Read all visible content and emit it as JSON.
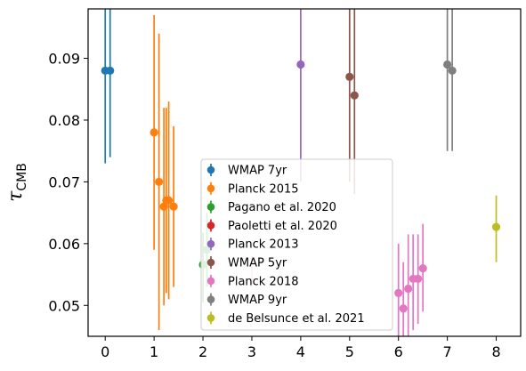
{
  "chart_data": {
    "type": "scatter",
    "title": "",
    "xlabel": "",
    "ylabel": {
      "symbol": "τ",
      "subscript": "CMB"
    },
    "xlim": [
      -0.35,
      8.5
    ],
    "ylim": [
      0.045,
      0.098
    ],
    "xticks": [
      0,
      1,
      2,
      3,
      4,
      5,
      6,
      7,
      8
    ],
    "yticks": [
      0.05,
      0.06,
      0.07,
      0.08,
      0.09
    ],
    "ytick_labels": [
      "0.05",
      "0.06",
      "0.07",
      "0.08",
      "0.09"
    ],
    "grid": false,
    "legend_placement": "lower center",
    "series": [
      {
        "name": "WMAP 7yr",
        "color": "#1f77b4",
        "points": [
          {
            "x": 0.0,
            "y": 0.088,
            "lo": 0.073,
            "hi": 0.103
          },
          {
            "x": 0.1,
            "y": 0.088,
            "lo": 0.074,
            "hi": 0.102
          }
        ]
      },
      {
        "name": "Planck 2015",
        "color": "#ff7f0e",
        "points": [
          {
            "x": 1.0,
            "y": 0.078,
            "lo": 0.059,
            "hi": 0.097
          },
          {
            "x": 1.1,
            "y": 0.07,
            "lo": 0.046,
            "hi": 0.094
          },
          {
            "x": 1.2,
            "y": 0.066,
            "lo": 0.05,
            "hi": 0.082
          },
          {
            "x": 1.25,
            "y": 0.067,
            "lo": 0.052,
            "hi": 0.082
          },
          {
            "x": 1.3,
            "y": 0.067,
            "lo": 0.051,
            "hi": 0.083
          },
          {
            "x": 1.4,
            "y": 0.066,
            "lo": 0.053,
            "hi": 0.079
          }
        ]
      },
      {
        "name": "Pagano et al. 2020",
        "color": "#2ca02c",
        "points": [
          {
            "x": 2.0,
            "y": 0.0566,
            "lo": 0.0505,
            "hi": 0.0618
          },
          {
            "x": 2.08,
            "y": 0.059,
            "lo": 0.053,
            "hi": 0.065
          }
        ]
      },
      {
        "name": "Paoletti et al. 2020",
        "color": "#d62728",
        "points": []
      },
      {
        "name": "Planck 2013",
        "color": "#9467bd",
        "points": [
          {
            "x": 4.0,
            "y": 0.089,
            "lo": 0.07,
            "hi": 0.108
          }
        ]
      },
      {
        "name": "WMAP 5yr",
        "color": "#8c564b",
        "points": [
          {
            "x": 5.0,
            "y": 0.087,
            "lo": 0.07,
            "hi": 0.104
          },
          {
            "x": 5.1,
            "y": 0.084,
            "lo": 0.068,
            "hi": 0.1
          }
        ]
      },
      {
        "name": "Planck 2018",
        "color": "#e377c2",
        "points": [
          {
            "x": 6.0,
            "y": 0.052,
            "lo": 0.044,
            "hi": 0.06
          },
          {
            "x": 6.1,
            "y": 0.0495,
            "lo": 0.042,
            "hi": 0.057
          },
          {
            "x": 6.2,
            "y": 0.0527,
            "lo": 0.044,
            "hi": 0.0615
          },
          {
            "x": 6.3,
            "y": 0.0543,
            "lo": 0.046,
            "hi": 0.0615
          },
          {
            "x": 6.4,
            "y": 0.0543,
            "lo": 0.047,
            "hi": 0.0615
          },
          {
            "x": 6.5,
            "y": 0.056,
            "lo": 0.049,
            "hi": 0.0632
          }
        ]
      },
      {
        "name": "WMAP 9yr",
        "color": "#7f7f7f",
        "points": [
          {
            "x": 7.0,
            "y": 0.089,
            "lo": 0.075,
            "hi": 0.103
          },
          {
            "x": 7.1,
            "y": 0.088,
            "lo": 0.075,
            "hi": 0.101
          }
        ]
      },
      {
        "name": "de Belsunce et al. 2021",
        "color": "#bcbd22",
        "points": [
          {
            "x": 8.0,
            "y": 0.0627,
            "lo": 0.057,
            "hi": 0.0678
          }
        ]
      }
    ],
    "extra_marks": [
      {
        "x": 3.0,
        "y": 0.0555,
        "lo": 0.053,
        "hi": 0.058,
        "color": "#ff9a9a"
      }
    ]
  }
}
